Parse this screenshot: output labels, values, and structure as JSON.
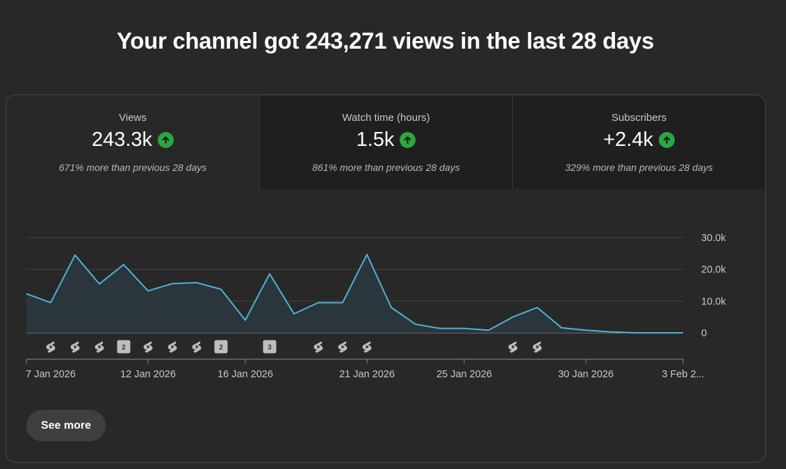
{
  "headline": "Your channel got 243,271 views in the last 28 days",
  "metrics": [
    {
      "label": "Views",
      "value": "243.3k",
      "trend_icon": "arrow-up-icon",
      "compare": "671% more than previous 28 days"
    },
    {
      "label": "Watch time (hours)",
      "value": "1.5k",
      "trend_icon": "arrow-up-icon",
      "compare": "861% more than previous 28 days"
    },
    {
      "label": "Subscribers",
      "value": "+2.4k",
      "trend_icon": "arrow-up-icon",
      "compare": "329% more than previous 28 days"
    }
  ],
  "selected_metric": "Views",
  "see_more_label": "See more",
  "colors": {
    "line": "#4fb3d9",
    "area": "#2a363b",
    "positive": "#2ba640"
  },
  "chart_data": {
    "type": "area",
    "x": [
      "7 Jan 2026",
      "8 Jan 2026",
      "9 Jan 2026",
      "10 Jan 2026",
      "11 Jan 2026",
      "12 Jan 2026",
      "13 Jan 2026",
      "14 Jan 2026",
      "15 Jan 2026",
      "16 Jan 2026",
      "17 Jan 2026",
      "18 Jan 2026",
      "19 Jan 2026",
      "20 Jan 2026",
      "21 Jan 2026",
      "22 Jan 2026",
      "23 Jan 2026",
      "24 Jan 2026",
      "25 Jan 2026",
      "26 Jan 2026",
      "27 Jan 2026",
      "28 Jan 2026",
      "29 Jan 2026",
      "30 Jan 2026",
      "31 Jan 2026",
      "1 Feb 2026",
      "2 Feb 2026",
      "3 Feb 2026"
    ],
    "series": [
      {
        "values": [
          12300,
          9500,
          24500,
          15400,
          21500,
          13200,
          15500,
          15800,
          13700,
          4000,
          18600,
          6000,
          9500,
          9500,
          24700,
          8000,
          2700,
          1400,
          1400,
          800,
          5000,
          8000,
          1600,
          800,
          300,
          0,
          0,
          0
        ]
      }
    ],
    "x_tick_labels": [
      "7 Jan 2026",
      "12 Jan 2026",
      "16 Jan 2026",
      "21 Jan 2026",
      "25 Jan 2026",
      "30 Jan 2026",
      "3 Feb 2..."
    ],
    "x_tick_index": [
      0,
      5,
      9,
      14,
      18,
      23,
      27
    ],
    "y_ticks": [
      "0",
      "10.0k",
      "20.0k",
      "30.0k"
    ],
    "y_tick_values": [
      0,
      10000,
      20000,
      30000
    ],
    "ylim": [
      0,
      30000
    ],
    "grid": true,
    "y_axis_position": "right",
    "markers": [
      {
        "index": 1,
        "kind": "short"
      },
      {
        "index": 2,
        "kind": "short"
      },
      {
        "index": 3,
        "kind": "short"
      },
      {
        "index": 4,
        "kind": "count",
        "count": "2"
      },
      {
        "index": 5,
        "kind": "short"
      },
      {
        "index": 6,
        "kind": "short"
      },
      {
        "index": 7,
        "kind": "short"
      },
      {
        "index": 8,
        "kind": "count",
        "count": "2"
      },
      {
        "index": 10,
        "kind": "count",
        "count": "3"
      },
      {
        "index": 12,
        "kind": "short"
      },
      {
        "index": 13,
        "kind": "short"
      },
      {
        "index": 14,
        "kind": "short"
      },
      {
        "index": 20,
        "kind": "short"
      },
      {
        "index": 21,
        "kind": "short"
      }
    ]
  }
}
